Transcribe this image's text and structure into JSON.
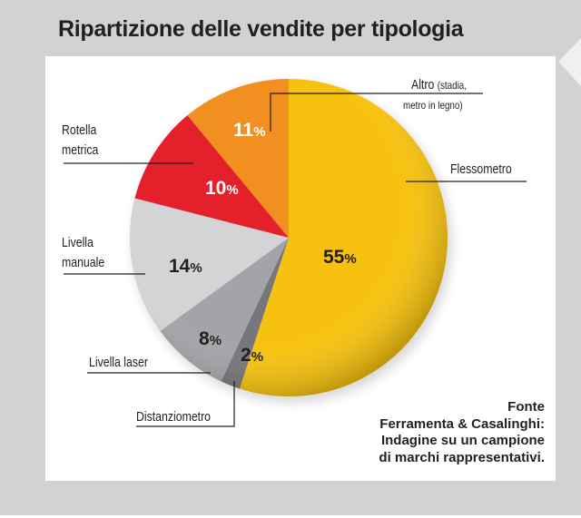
{
  "chart_data": {
    "type": "pie",
    "title": "Ripartizione delle vendite per tipologia",
    "slices": [
      {
        "label": "Flessometro",
        "value": 55,
        "display": "55",
        "color": "#f7c20f"
      },
      {
        "label": "Distanziometro",
        "value": 2,
        "display": "2",
        "color": "#76777a"
      },
      {
        "label": "Livella laser",
        "value": 8,
        "display": "8",
        "color": "#a3a4a7"
      },
      {
        "label": "Livella manuale",
        "label_lines": [
          "Livella",
          "manuale"
        ],
        "value": 14,
        "display": "14",
        "color": "#d3d4d6"
      },
      {
        "label": "Rotella metrica",
        "label_lines": [
          "Rotella",
          "metrica"
        ],
        "value": 10,
        "display": "10",
        "color": "#e4202a"
      },
      {
        "label": "Altro (stadia, metro in legno)",
        "label_main": "Altro",
        "label_note_1": "(stadia,",
        "label_note_2": "metro in legno)",
        "value": 11,
        "display": "11",
        "color": "#f18f21"
      }
    ],
    "percent_sign": "%",
    "start": "top",
    "direction": "clockwise"
  },
  "source": {
    "line1": "Fonte",
    "line2": "Ferramenta & Casalinghi:",
    "line3": "Indagine su un campione",
    "line4": "di marchi rappresentativi."
  }
}
